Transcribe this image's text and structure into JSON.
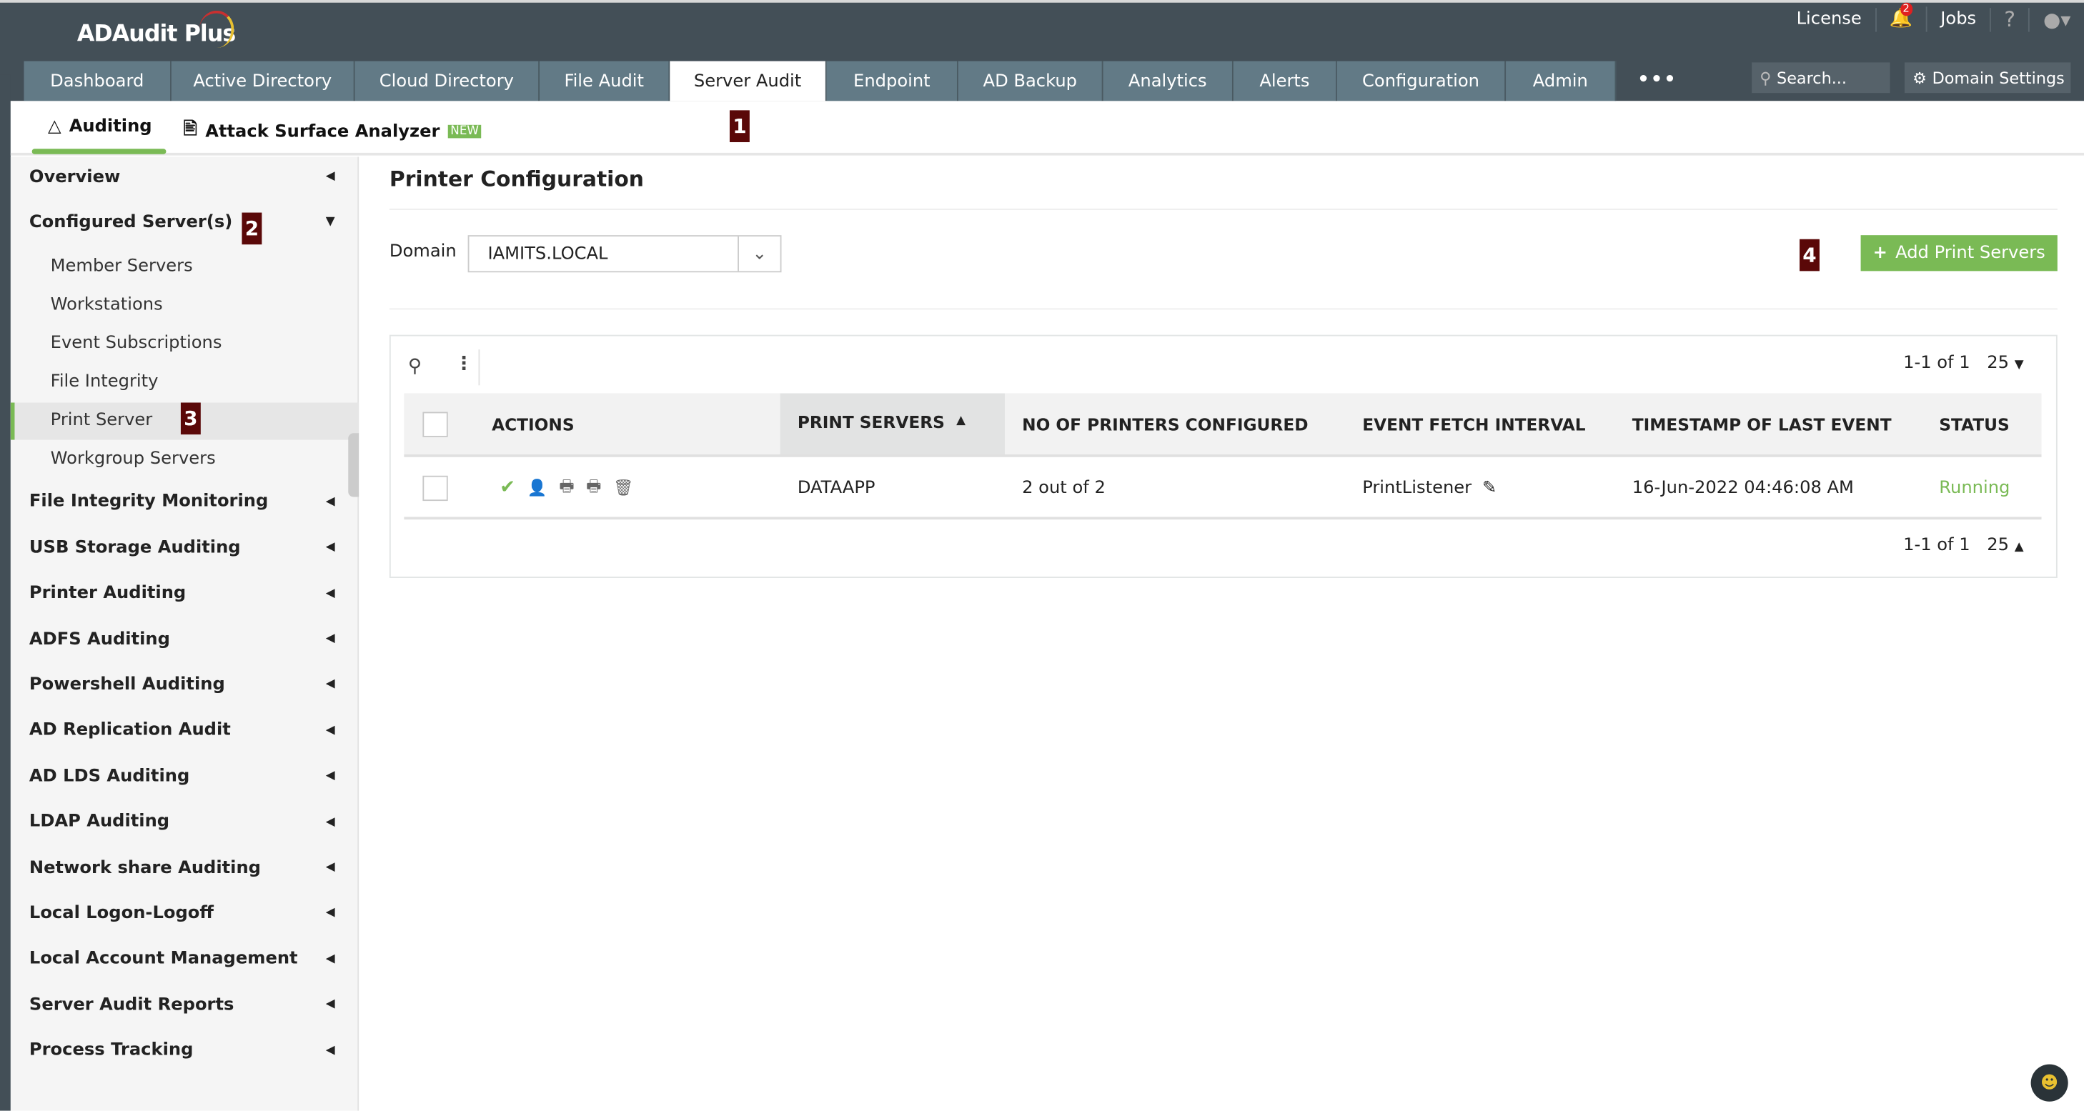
{
  "app": {
    "name": "ADAudit Plus"
  },
  "toplinks": {
    "license": "License",
    "notifications_count": "2",
    "jobs": "Jobs",
    "help": "?"
  },
  "nav_tabs": [
    {
      "label": "Dashboard",
      "w": 111
    },
    {
      "label": "Active Directory",
      "w": 138
    },
    {
      "label": "Cloud Directory",
      "w": 139
    },
    {
      "label": "File Audit",
      "w": 98
    },
    {
      "label": "Server Audit",
      "w": 118,
      "active": true
    },
    {
      "label": "Endpoint",
      "w": 99
    },
    {
      "label": "AD Backup",
      "w": 109
    },
    {
      "label": "Analytics",
      "w": 98
    },
    {
      "label": "Alerts",
      "w": 78
    },
    {
      "label": "Configuration",
      "w": 127
    },
    {
      "label": "Admin",
      "w": 83
    }
  ],
  "more_label": "•••",
  "search": {
    "placeholder": "Search..."
  },
  "domain_settings": "Domain Settings",
  "subtabs": {
    "auditing": "Auditing",
    "attack_surface": "Attack Surface Analyzer",
    "new_tag": "NEW"
  },
  "markers": [
    "1",
    "2",
    "3",
    "4"
  ],
  "sidebar": {
    "items": [
      {
        "label": "Overview"
      },
      {
        "label": "Configured Server(s)",
        "expanded": true,
        "children": [
          "Member Servers",
          "Workstations",
          "Event Subscriptions",
          "File Integrity",
          "Print Server",
          "Workgroup Servers"
        ],
        "selected": "Print Server"
      },
      {
        "label": "File Integrity Monitoring"
      },
      {
        "label": "USB Storage Auditing"
      },
      {
        "label": "Printer Auditing"
      },
      {
        "label": "ADFS Auditing"
      },
      {
        "label": "Powershell Auditing"
      },
      {
        "label": "AD Replication Audit"
      },
      {
        "label": "AD LDS Auditing"
      },
      {
        "label": "LDAP Auditing"
      },
      {
        "label": "Network share Auditing"
      },
      {
        "label": "Local Logon-Logoff"
      },
      {
        "label": "Local Account Management"
      },
      {
        "label": "Server Audit Reports"
      },
      {
        "label": "Process Tracking"
      }
    ]
  },
  "main": {
    "title": "Printer Configuration",
    "domain_label": "Domain",
    "domain_value": "IAMITS.LOCAL",
    "add_button": "Add Print Servers",
    "pagination": {
      "range": "1-1 of 1",
      "page_size": "25"
    },
    "columns": [
      "ACTIONS",
      "PRINT SERVERS",
      "NO OF PRINTERS CONFIGURED",
      "EVENT FETCH INTERVAL",
      "TIMESTAMP OF LAST EVENT",
      "STATUS"
    ],
    "sorted_column": "PRINT SERVERS",
    "rows": [
      {
        "server": "DATAAPP",
        "printers": "2 out of 2",
        "interval": "PrintListener",
        "timestamp": "16-Jun-2022 04:46:08 AM",
        "status": "Running"
      }
    ]
  },
  "colors": {
    "topbar": "#434f57",
    "tab": "#627a86",
    "accent_green": "#7aba55",
    "marker": "#5a0808",
    "status_running": "#7aba55"
  }
}
